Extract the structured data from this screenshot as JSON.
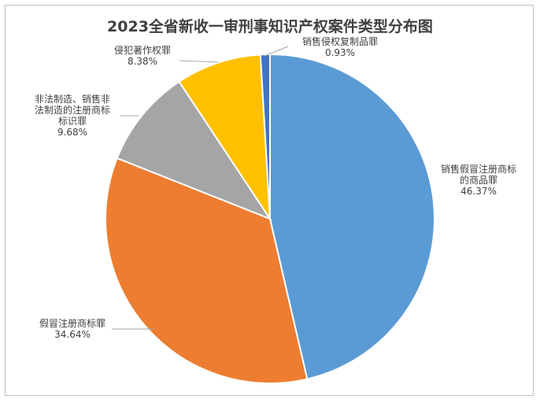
{
  "chart_data": {
    "type": "pie",
    "title": "2023全省新收一审刑事知识产权案件类型分布图",
    "slices": [
      {
        "label_lines": [
          "销售假冒注册商标",
          "的商品罪"
        ],
        "value": 46.37,
        "value_label": "46.37%",
        "color": "#5b9bd5"
      },
      {
        "label_lines": [
          "假冒注册商标罪"
        ],
        "value": 34.64,
        "value_label": "34.64%",
        "color": "#ed7d31"
      },
      {
        "label_lines": [
          "非法制造、销售非",
          "法制造的注册商标",
          "标识罪"
        ],
        "value": 9.68,
        "value_label": "9.68%",
        "color": "#a5a5a5"
      },
      {
        "label_lines": [
          "侵犯著作权罪"
        ],
        "value": 8.38,
        "value_label": "8.38%",
        "color": "#ffc000"
      },
      {
        "label_lines": [
          "销售侵权复制品罪"
        ],
        "value": 0.93,
        "value_label": "0.93%",
        "color": "#4472c4"
      }
    ]
  }
}
